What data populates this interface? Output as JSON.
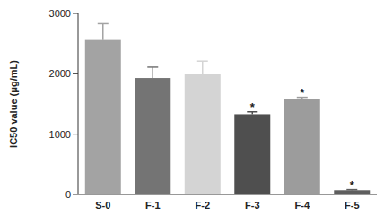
{
  "chart_data": {
    "type": "bar",
    "y_label": "IC50 value (μg/mL)",
    "categories": [
      "S-0",
      "F-1",
      "F-2",
      "F-3",
      "F-4",
      "F-5"
    ],
    "values": [
      2560,
      1930,
      1990,
      1330,
      1580,
      70
    ],
    "errors": [
      270,
      180,
      220,
      40,
      30,
      10
    ],
    "colors": [
      "#a3a3a3",
      "#747474",
      "#d4d4d4",
      "#4f4f4f",
      "#9c9c9c",
      "#5e5e5e"
    ],
    "annotations": [
      {
        "category": "F-3",
        "text": "*"
      },
      {
        "category": "F-4",
        "text": "*"
      },
      {
        "category": "F-5",
        "text": "*"
      }
    ],
    "ylim": [
      0,
      3000
    ],
    "yticks": [
      0,
      1000,
      2000,
      3000
    ],
    "grid": false
  }
}
